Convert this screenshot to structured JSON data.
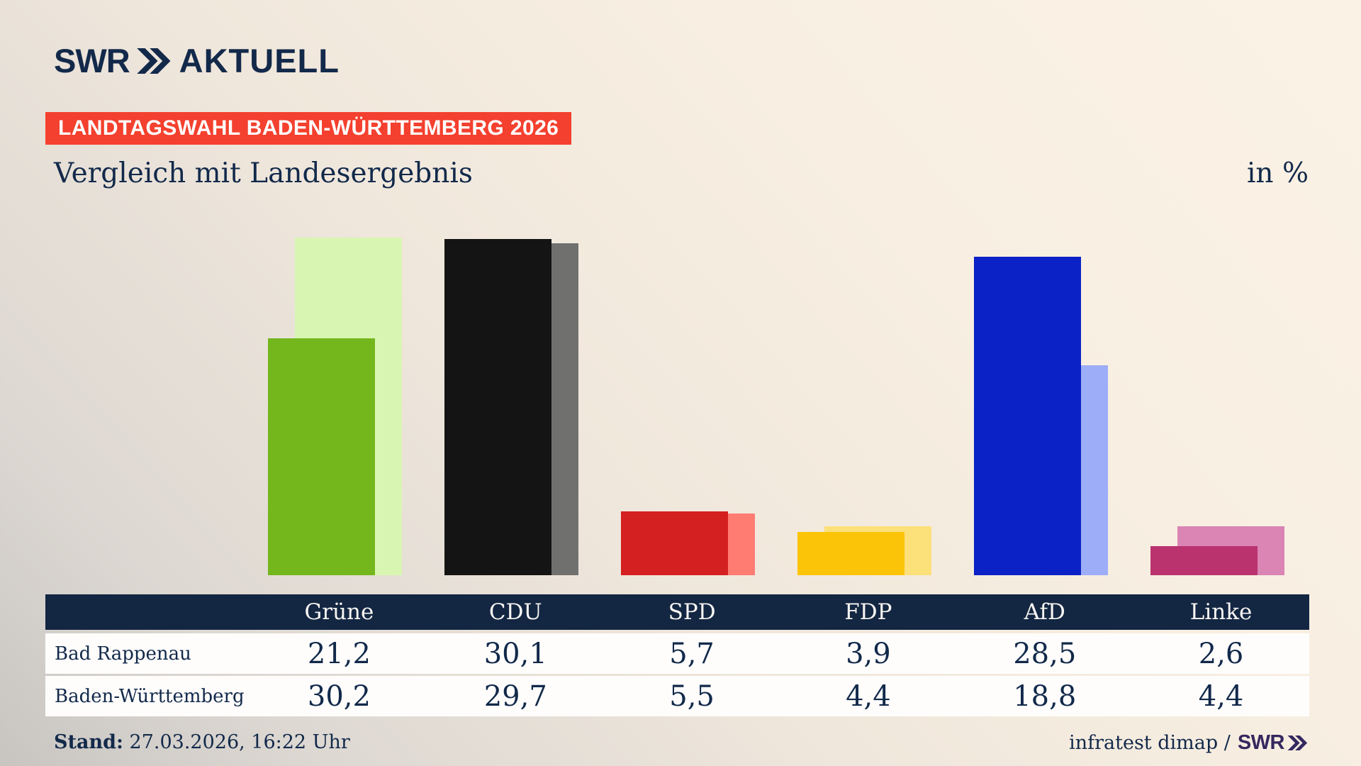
{
  "brand": {
    "logo_text": "SWR",
    "logo_suffix": "AKTUELL"
  },
  "banner": {
    "text": "LANDTAGSWAHL BADEN-WÜRTTEMBERG 2026",
    "bg_color": "#f4402e"
  },
  "header": {
    "title": "Vergleich mit Landesergebnis",
    "unit_label": "in %"
  },
  "table": {
    "columns": [
      "Grüne",
      "CDU",
      "SPD",
      "FDP",
      "AfD",
      "Linke"
    ],
    "rows": [
      {
        "label": "Bad Rappenau",
        "values": [
          "21,2",
          "30,1",
          "5,7",
          "3,9",
          "28,5",
          "2,6"
        ]
      },
      {
        "label": "Baden-Württemberg",
        "values": [
          "30,2",
          "29,7",
          "5,5",
          "4,4",
          "18,8",
          "4,4"
        ]
      }
    ]
  },
  "footer": {
    "stand_label": "Stand:",
    "stand_value": " 27.03.2026, 16:22 Uhr",
    "source_text": "infratest dimap /",
    "source_brand": "SWR"
  },
  "colors": {
    "navy_text": "#13294a",
    "banner_red": "#f4402e",
    "table_header_bg": "#132642",
    "footer_brand_purple": "#35285f"
  },
  "chart_data": {
    "type": "bar",
    "title": "Vergleich mit Landesergebnis",
    "unit": "in %",
    "categories": [
      "Grüne",
      "CDU",
      "SPD",
      "FDP",
      "AfD",
      "Linke"
    ],
    "series": [
      {
        "name": "Bad Rappenau",
        "role": "foreground",
        "values": [
          21.2,
          30.1,
          5.7,
          3.9,
          28.5,
          2.6
        ],
        "colors": [
          "#74b71d",
          "#141414",
          "#d42020",
          "#fcc409",
          "#0a22c6",
          "#ba336f"
        ]
      },
      {
        "name": "Baden-Württemberg",
        "role": "background",
        "values": [
          30.2,
          29.7,
          5.5,
          4.4,
          18.8,
          4.4
        ],
        "colors": [
          "#d8f6b2",
          "#70706e",
          "#ff7c73",
          "#fce07a",
          "#9dadf8",
          "#da85b4"
        ]
      }
    ],
    "value_suffix": "%",
    "legend_position": "table-below",
    "grid": false,
    "axes_visible": false
  }
}
